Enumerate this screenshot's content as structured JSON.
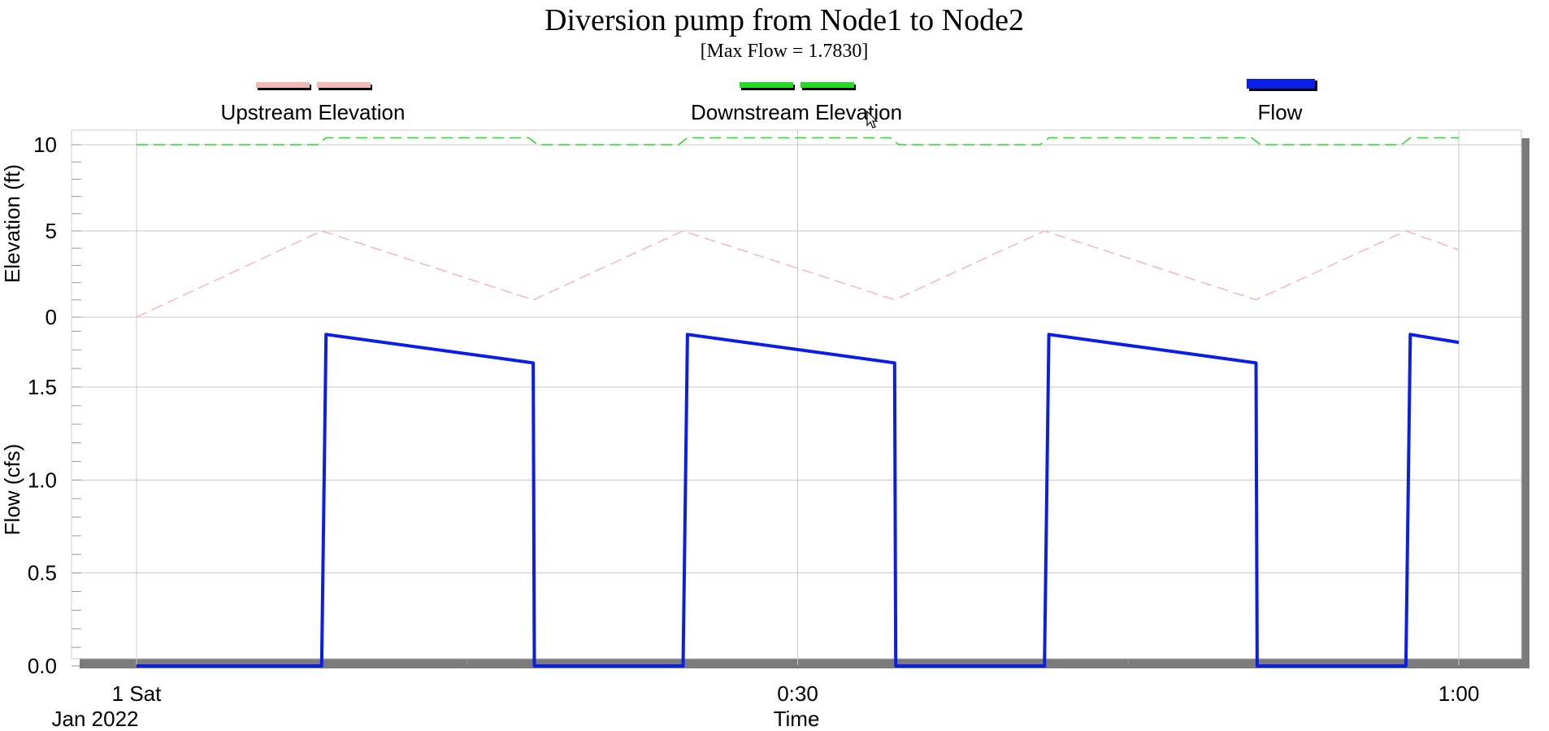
{
  "chart_data": {
    "type": "line",
    "title": "Diversion pump from Node1 to Node2",
    "subtitle": "[Max Flow = 1.7830]",
    "xlabel": "Time",
    "x_date_label": "Jan 2022",
    "x_ticks": [
      "1 Sat",
      "0:30",
      "1:00"
    ],
    "x_tick_values": [
      0,
      30,
      60
    ],
    "xlim": [
      0,
      60
    ],
    "legend_placement": "top",
    "grid": true,
    "panels": [
      {
        "ylabel": "Elevation (ft)",
        "ylim": [
          0,
          11
        ],
        "y_ticks": [
          "0",
          "5",
          "10"
        ],
        "y_tick_values": [
          0,
          5,
          10
        ],
        "series": [
          "Upstream Elevation",
          "Downstream Elevation"
        ]
      },
      {
        "ylabel": "Flow (cfs)",
        "ylim": [
          0,
          1.8
        ],
        "y_ticks": [
          "0.0",
          "0.5",
          "1.0",
          "1.5"
        ],
        "y_tick_values": [
          0,
          0.5,
          1.0,
          1.5
        ],
        "series": [
          "Flow"
        ]
      }
    ],
    "series": [
      {
        "name": "Upstream Elevation",
        "panel": 0,
        "color": "#f4b8b8",
        "dash": true,
        "x": [
          0,
          8.4,
          18,
          24.8,
          34.4,
          41.2,
          50.8,
          57.6,
          60
        ],
        "y": [
          0,
          5,
          1,
          5,
          1,
          5,
          1,
          5,
          3.9
        ]
      },
      {
        "name": "Downstream Elevation",
        "panel": 0,
        "color": "#22dd22",
        "dash": true,
        "x": [
          0,
          8.2,
          8.6,
          17.8,
          18.2,
          24.6,
          25.0,
          34.2,
          34.6,
          41.0,
          41.4,
          50.6,
          51.0,
          57.4,
          57.8,
          60
        ],
        "y": [
          10,
          10,
          10.4,
          10.4,
          10,
          10,
          10.4,
          10.4,
          10,
          10,
          10.4,
          10.4,
          10,
          10,
          10.4,
          10.4
        ]
      },
      {
        "name": "Flow",
        "panel": 1,
        "color": "#0a1ee8",
        "dash": false,
        "x": [
          0,
          8.4,
          8.6,
          18,
          18.05,
          24.8,
          25.0,
          34.4,
          34.45,
          41.2,
          41.4,
          50.8,
          50.85,
          57.6,
          57.8,
          60
        ],
        "y": [
          0,
          0,
          1.783,
          1.63,
          0,
          0,
          1.783,
          1.63,
          0,
          0,
          1.783,
          1.63,
          0,
          0,
          1.783,
          1.74
        ]
      }
    ],
    "legend": [
      {
        "name": "Upstream Elevation",
        "color": "#f4b8b8"
      },
      {
        "name": "Downstream Elevation",
        "color": "#22dd22"
      },
      {
        "name": "Flow",
        "color": "#0a1ee8"
      }
    ]
  }
}
